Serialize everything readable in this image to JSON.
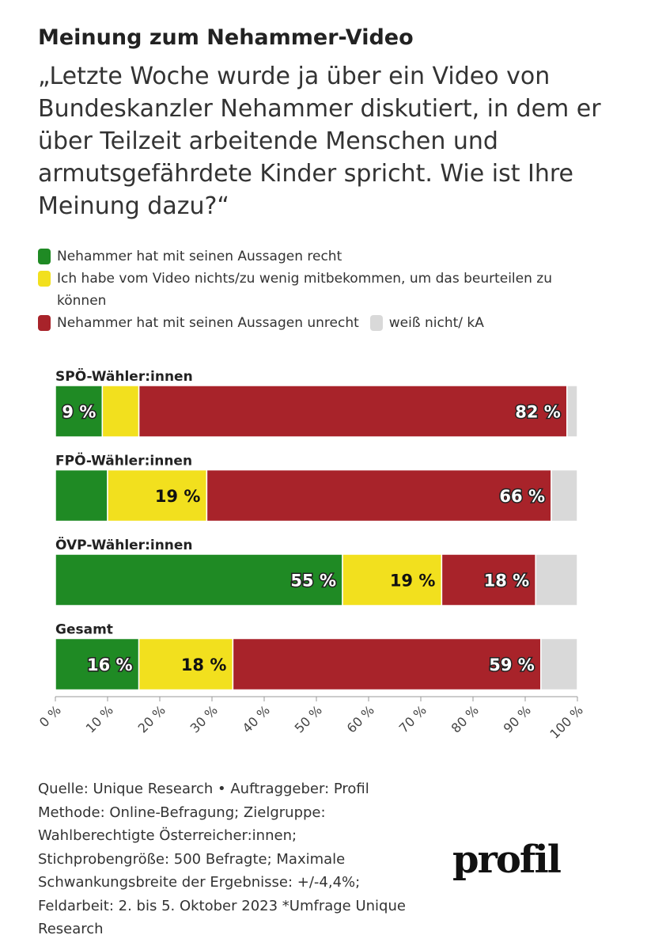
{
  "chart_data": {
    "type": "stacked-bar-horizontal",
    "title": "Meinung zum Nehammer-Video",
    "subtitle": "„Letzte Woche wurde ja über ein Video von Bundeskanzler Nehammer diskutiert, in dem er über Teilzeit arbeitende Menschen und armutsgefährdete Kinder spricht. Wie ist Ihre Meinung dazu?“",
    "categories": [
      "SPÖ-Wähler:innen",
      "FPÖ-Wähler:innen",
      "ÖVP-Wähler:innen",
      "Gesamt"
    ],
    "series": [
      {
        "name": "Nehammer hat mit seinen Aussagen recht",
        "color": "#1f8a24",
        "values": [
          9,
          10,
          55,
          16
        ],
        "value_labels": [
          "9 %",
          null,
          "55 %",
          "16 %"
        ]
      },
      {
        "name": "Ich habe vom Video nichts/zu wenig mitbekommen, um das beurteilen zu können",
        "color": "#f2e01e",
        "values": [
          7,
          19,
          19,
          18
        ],
        "value_labels": [
          null,
          "19 %",
          "19 %",
          "18 %"
        ]
      },
      {
        "name": "Nehammer hat mit seinen Aussagen unrecht",
        "color": "#a8232a",
        "values": [
          82,
          66,
          18,
          59
        ],
        "value_labels": [
          "82 %",
          "66 %",
          "18 %",
          "59 %"
        ]
      },
      {
        "name": "weiß nicht/ kA",
        "color": "#d9d9d9",
        "values": [
          2,
          5,
          8,
          7
        ],
        "value_labels": [
          null,
          null,
          null,
          null
        ]
      }
    ],
    "xlim": [
      0,
      100
    ],
    "xticks": [
      {
        "value": 0,
        "label": "0 %"
      },
      {
        "value": 10,
        "label": "10 %"
      },
      {
        "value": 20,
        "label": "20 %"
      },
      {
        "value": 30,
        "label": "30 %"
      },
      {
        "value": 40,
        "label": "40 %"
      },
      {
        "value": 50,
        "label": "50 %"
      },
      {
        "value": 60,
        "label": "60 %"
      },
      {
        "value": 70,
        "label": "70 %"
      },
      {
        "value": 80,
        "label": "80 %"
      },
      {
        "value": 90,
        "label": "90 %"
      },
      {
        "value": 100,
        "label": "100 %"
      }
    ],
    "source": "Quelle: Unique Research • Auftraggeber: Profil Methode: Online-Befragung; Zielgruppe: Wahlberechtigte Österreicher:innen; Stichprobengröße: 500 Befragte; Maximale Schwankungsbreite der Ergebnisse: +/-4,4%; Feldarbeit: 2. bis 5. Oktober 2023 *Umfrage Unique Research",
    "logo": "profil"
  }
}
